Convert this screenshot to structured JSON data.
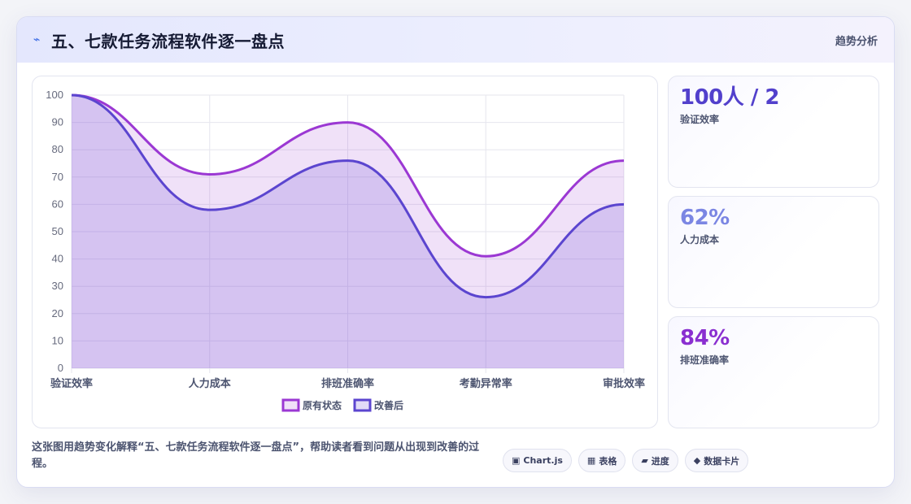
{
  "header": {
    "title": "五、七款任务流程软件逐一盘点",
    "badge": "趋势分析",
    "icon": "bolt-icon"
  },
  "colors": {
    "series_a": "#9b38d3",
    "series_b": "#5b45cf",
    "stat_1": "#5240cc",
    "stat_2": "#7b86e3",
    "stat_3": "#8a2fd0"
  },
  "chart_data": {
    "type": "line",
    "categories": [
      "验证效率",
      "人力成本",
      "排班准确率",
      "考勤异常率",
      "审批效率"
    ],
    "series": [
      {
        "name": "原有状态",
        "values": [
          100,
          71,
          90,
          41,
          76
        ]
      },
      {
        "name": "改善后",
        "values": [
          100,
          58,
          76,
          26,
          60
        ]
      }
    ],
    "ylim": [
      0,
      100
    ],
    "yticks": [
      "0",
      "10",
      "20",
      "30",
      "40",
      "50",
      "60",
      "70",
      "80",
      "90",
      "100"
    ],
    "fill": true,
    "grid": true,
    "legend": "bottom"
  },
  "stats": [
    {
      "value": "100人 / 2",
      "label": "验证效率"
    },
    {
      "value": "62%",
      "label": "人力成本"
    },
    {
      "value": "84%",
      "label": "排班准确率"
    }
  ],
  "footer": {
    "text": "这张图用趋势变化解释“五、七款任务流程软件逐一盘点”，帮助读者看到问题从出现到改善的过程。"
  },
  "tags": [
    {
      "icon": "▣",
      "label": "Chart.js"
    },
    {
      "icon": "▦",
      "label": "表格"
    },
    {
      "icon": "▰",
      "label": "进度"
    },
    {
      "icon": "◆",
      "label": "数据卡片"
    }
  ]
}
